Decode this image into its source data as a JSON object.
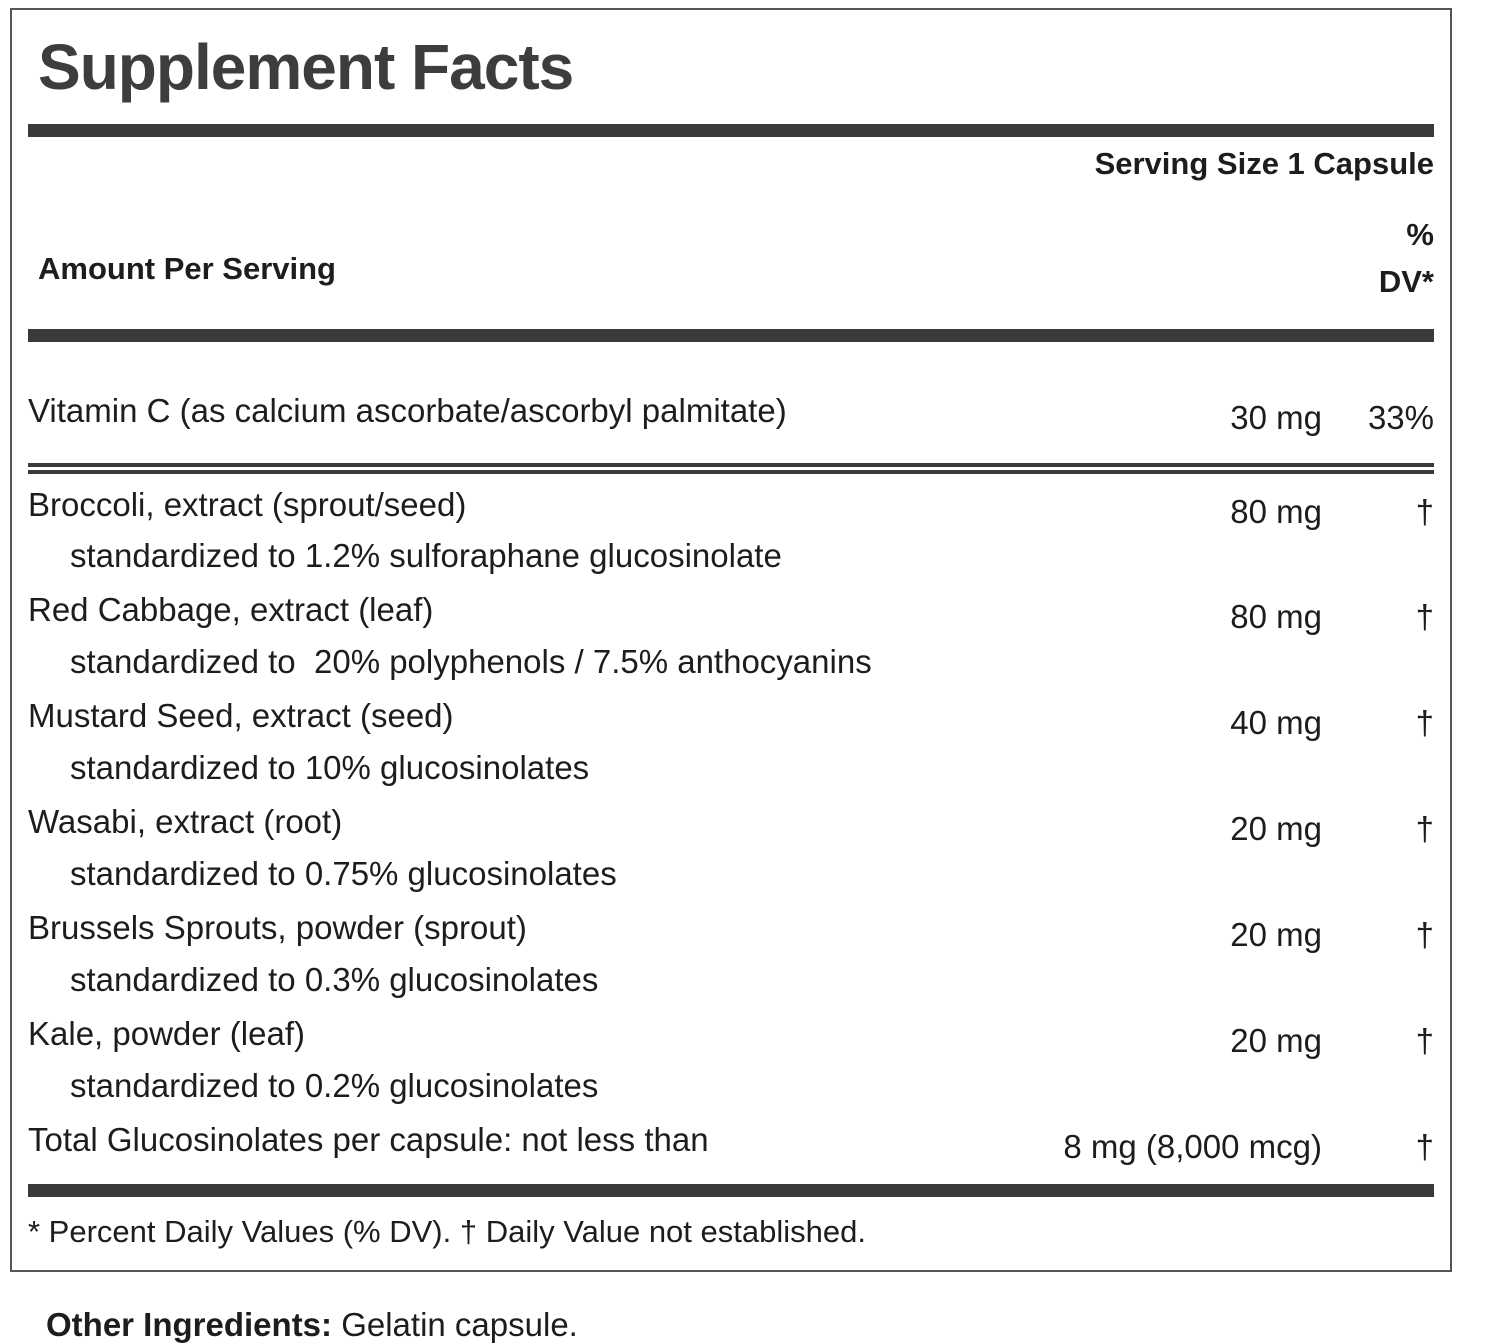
{
  "label": {
    "title": "Supplement Facts",
    "serving_size": "Serving Size 1 Capsule",
    "header": {
      "amount_per_serving": "Amount Per Serving",
      "percent": "%",
      "dv": "DV*"
    },
    "rows": [
      {
        "name": "Vitamin C (as calcium ascorbate/ascorbyl palmitate)",
        "amount": "30 mg",
        "dv": "33%",
        "rule_after": "double"
      },
      {
        "name": "Broccoli, extract (sprout/seed)",
        "amount": "80 mg",
        "dv": "†",
        "sub": "standardized to 1.2% sulforaphane glucosinolate"
      },
      {
        "name": "Red Cabbage, extract (leaf)",
        "amount": "80 mg",
        "dv": "†",
        "sub": "standardized to  20% polyphenols / 7.5% anthocyanins"
      },
      {
        "name": "Mustard Seed, extract (seed)",
        "amount": "40 mg",
        "dv": "†",
        "sub": "standardized to 10% glucosinolates"
      },
      {
        "name": "Wasabi, extract (root)",
        "amount": "20 mg",
        "dv": "†",
        "sub": "standardized to 0.75% glucosinolates"
      },
      {
        "name": "Brussels Sprouts, powder (sprout)",
        "amount": "20 mg",
        "dv": "†",
        "sub": "standardized to 0.3% glucosinolates"
      },
      {
        "name": "Kale, powder (leaf)",
        "amount": "20 mg",
        "dv": "†",
        "sub": "standardized to 0.2% glucosinolates"
      },
      {
        "name": "Total Glucosinolates per capsule: not less than",
        "amount": "8 mg (8,000 mcg)",
        "dv": "†"
      }
    ],
    "footnote": "* Percent Daily Values (% DV). † Daily Value not established.",
    "other_ingredients_label": "Other Ingredients:",
    "other_ingredients_value": " Gelatin capsule."
  },
  "colors": {
    "text": "#1d1d1d",
    "title": "#3d3d3d",
    "bar": "#3a3a3a",
    "border": "#555555",
    "background": "#ffffff"
  }
}
